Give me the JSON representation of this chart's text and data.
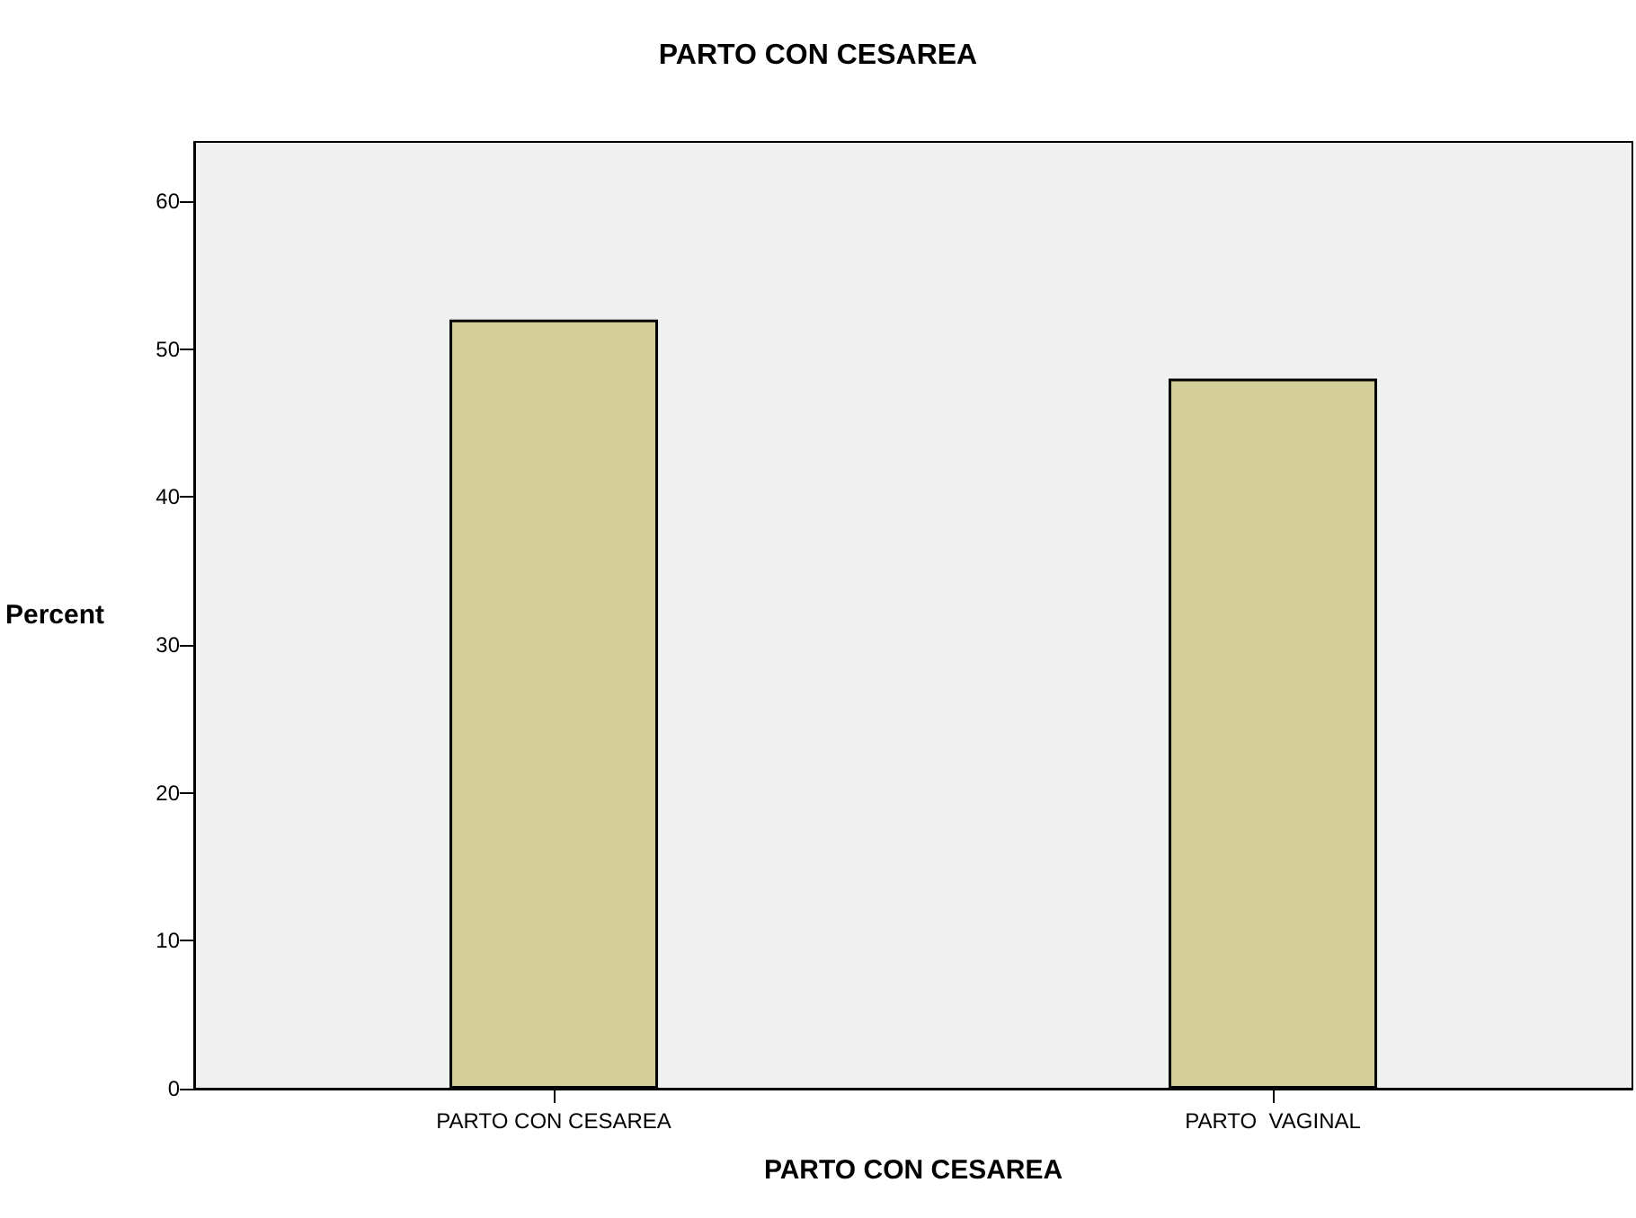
{
  "chart_data": {
    "type": "bar",
    "title": "PARTO CON CESAREA",
    "xlabel": "PARTO CON CESAREA",
    "ylabel": "Percent",
    "categories": [
      "PARTO CON CESAREA",
      "PARTO  VAGINAL"
    ],
    "values": [
      52,
      48
    ],
    "color": "#d3ce97",
    "ylim": [
      0,
      64
    ],
    "yticks": [
      0,
      10,
      20,
      30,
      40,
      50,
      60
    ],
    "grid": false
  }
}
